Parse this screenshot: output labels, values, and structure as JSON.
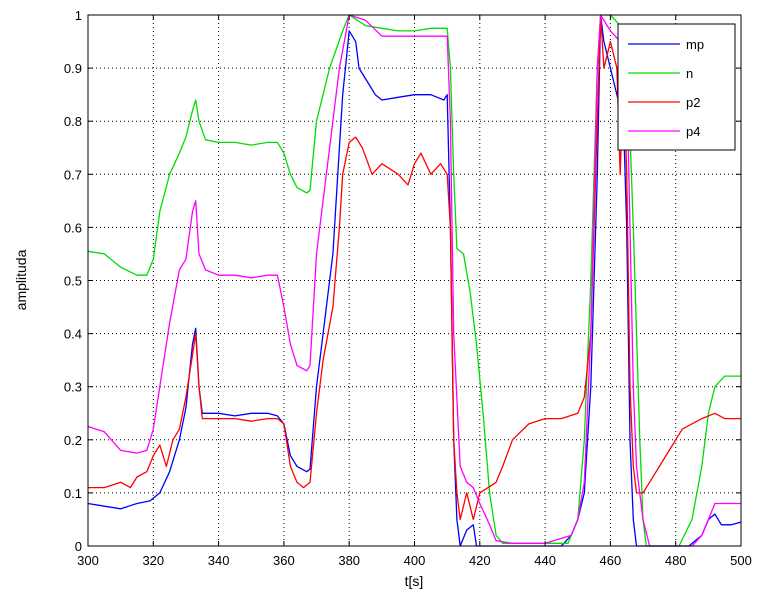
{
  "chart_data": {
    "type": "line",
    "title": "",
    "xlabel": "t[s]",
    "ylabel": "amplituda",
    "xlim": [
      300,
      500
    ],
    "ylim": [
      0,
      1
    ],
    "x_ticks": [
      300,
      320,
      340,
      360,
      380,
      400,
      420,
      440,
      460,
      480,
      500
    ],
    "y_ticks": [
      0,
      0.1,
      0.2,
      0.3,
      0.4,
      0.5,
      0.6,
      0.7,
      0.8,
      0.9,
      1
    ],
    "grid": true,
    "legend_position": "top-right",
    "series": [
      {
        "name": "mp",
        "color": "#0000ff",
        "points": [
          [
            300,
            0.08
          ],
          [
            305,
            0.075
          ],
          [
            310,
            0.07
          ],
          [
            315,
            0.08
          ],
          [
            319,
            0.085
          ],
          [
            322,
            0.1
          ],
          [
            325,
            0.14
          ],
          [
            328,
            0.2
          ],
          [
            330,
            0.26
          ],
          [
            332,
            0.38
          ],
          [
            333,
            0.41
          ],
          [
            334,
            0.3
          ],
          [
            335,
            0.25
          ],
          [
            340,
            0.25
          ],
          [
            345,
            0.245
          ],
          [
            350,
            0.25
          ],
          [
            355,
            0.25
          ],
          [
            358,
            0.245
          ],
          [
            360,
            0.23
          ],
          [
            362,
            0.17
          ],
          [
            364,
            0.15
          ],
          [
            367,
            0.14
          ],
          [
            368,
            0.145
          ],
          [
            370,
            0.3
          ],
          [
            372,
            0.4
          ],
          [
            375,
            0.55
          ],
          [
            377,
            0.75
          ],
          [
            378,
            0.85
          ],
          [
            380,
            0.97
          ],
          [
            382,
            0.95
          ],
          [
            383,
            0.9
          ],
          [
            386,
            0.87
          ],
          [
            388,
            0.85
          ],
          [
            390,
            0.84
          ],
          [
            395,
            0.845
          ],
          [
            400,
            0.85
          ],
          [
            405,
            0.85
          ],
          [
            409,
            0.84
          ],
          [
            410,
            0.85
          ],
          [
            411,
            0.6
          ],
          [
            412,
            0.2
          ],
          [
            413,
            0.05
          ],
          [
            414,
            0.0
          ],
          [
            416,
            0.03
          ],
          [
            418,
            0.04
          ],
          [
            419,
            0.0
          ],
          [
            422,
            0.0
          ],
          [
            425,
            0.0
          ],
          [
            430,
            0.0
          ],
          [
            440,
            0.0
          ],
          [
            445,
            0.0
          ],
          [
            448,
            0.02
          ],
          [
            450,
            0.05
          ],
          [
            452,
            0.1
          ],
          [
            454,
            0.3
          ],
          [
            456,
            0.7
          ],
          [
            457,
            1.0
          ],
          [
            458,
            0.95
          ],
          [
            460,
            0.9
          ],
          [
            462,
            0.85
          ],
          [
            464,
            0.8
          ],
          [
            465,
            0.6
          ],
          [
            466,
            0.2
          ],
          [
            467,
            0.05
          ],
          [
            468,
            0.0
          ],
          [
            472,
            0.0
          ],
          [
            476,
            0.0
          ],
          [
            480,
            0.0
          ],
          [
            484,
            0.0
          ],
          [
            488,
            0.02
          ],
          [
            490,
            0.05
          ],
          [
            492,
            0.06
          ],
          [
            494,
            0.04
          ],
          [
            497,
            0.04
          ],
          [
            500,
            0.045
          ]
        ]
      },
      {
        "name": "n",
        "color": "#00dd00",
        "points": [
          [
            300,
            0.555
          ],
          [
            305,
            0.55
          ],
          [
            310,
            0.525
          ],
          [
            315,
            0.51
          ],
          [
            318,
            0.51
          ],
          [
            320,
            0.54
          ],
          [
            322,
            0.63
          ],
          [
            325,
            0.7
          ],
          [
            328,
            0.74
          ],
          [
            330,
            0.77
          ],
          [
            332,
            0.82
          ],
          [
            333,
            0.84
          ],
          [
            334,
            0.8
          ],
          [
            336,
            0.765
          ],
          [
            340,
            0.76
          ],
          [
            345,
            0.76
          ],
          [
            350,
            0.755
          ],
          [
            355,
            0.76
          ],
          [
            358,
            0.76
          ],
          [
            360,
            0.74
          ],
          [
            362,
            0.7
          ],
          [
            364,
            0.675
          ],
          [
            367,
            0.665
          ],
          [
            368,
            0.67
          ],
          [
            370,
            0.8
          ],
          [
            374,
            0.9
          ],
          [
            378,
            0.97
          ],
          [
            380,
            1.0
          ],
          [
            385,
            0.98
          ],
          [
            390,
            0.975
          ],
          [
            395,
            0.97
          ],
          [
            400,
            0.97
          ],
          [
            405,
            0.975
          ],
          [
            410,
            0.975
          ],
          [
            411,
            0.9
          ],
          [
            412,
            0.7
          ],
          [
            413,
            0.56
          ],
          [
            415,
            0.55
          ],
          [
            417,
            0.48
          ],
          [
            419,
            0.38
          ],
          [
            421,
            0.25
          ],
          [
            423,
            0.1
          ],
          [
            425,
            0.02
          ],
          [
            427,
            0.005
          ],
          [
            430,
            0.005
          ],
          [
            440,
            0.005
          ],
          [
            447,
            0.005
          ],
          [
            450,
            0.05
          ],
          [
            452,
            0.2
          ],
          [
            454,
            0.5
          ],
          [
            456,
            0.9
          ],
          [
            457,
            1.0
          ],
          [
            460,
            1.0
          ],
          [
            463,
            0.98
          ],
          [
            465,
            0.95
          ],
          [
            467,
            0.6
          ],
          [
            469,
            0.2
          ],
          [
            470,
            0.05
          ],
          [
            471,
            0.0
          ],
          [
            476,
            0.0
          ],
          [
            481,
            0.0
          ],
          [
            485,
            0.05
          ],
          [
            488,
            0.15
          ],
          [
            490,
            0.25
          ],
          [
            492,
            0.3
          ],
          [
            495,
            0.32
          ],
          [
            500,
            0.32
          ]
        ]
      },
      {
        "name": "p2",
        "color": "#ff0000",
        "points": [
          [
            300,
            0.11
          ],
          [
            305,
            0.11
          ],
          [
            310,
            0.12
          ],
          [
            313,
            0.11
          ],
          [
            315,
            0.13
          ],
          [
            318,
            0.14
          ],
          [
            320,
            0.17
          ],
          [
            322,
            0.19
          ],
          [
            324,
            0.15
          ],
          [
            326,
            0.2
          ],
          [
            328,
            0.22
          ],
          [
            330,
            0.28
          ],
          [
            332,
            0.36
          ],
          [
            333,
            0.4
          ],
          [
            334,
            0.3
          ],
          [
            335,
            0.24
          ],
          [
            340,
            0.24
          ],
          [
            345,
            0.24
          ],
          [
            350,
            0.235
          ],
          [
            355,
            0.24
          ],
          [
            358,
            0.24
          ],
          [
            360,
            0.23
          ],
          [
            362,
            0.15
          ],
          [
            364,
            0.12
          ],
          [
            366,
            0.11
          ],
          [
            368,
            0.12
          ],
          [
            370,
            0.25
          ],
          [
            372,
            0.35
          ],
          [
            375,
            0.45
          ],
          [
            377,
            0.6
          ],
          [
            378,
            0.7
          ],
          [
            380,
            0.76
          ],
          [
            382,
            0.77
          ],
          [
            384,
            0.75
          ],
          [
            387,
            0.7
          ],
          [
            390,
            0.72
          ],
          [
            395,
            0.7
          ],
          [
            398,
            0.68
          ],
          [
            400,
            0.72
          ],
          [
            402,
            0.74
          ],
          [
            405,
            0.7
          ],
          [
            408,
            0.72
          ],
          [
            410,
            0.7
          ],
          [
            411,
            0.6
          ],
          [
            412,
            0.2
          ],
          [
            413,
            0.1
          ],
          [
            414,
            0.05
          ],
          [
            416,
            0.1
          ],
          [
            418,
            0.05
          ],
          [
            420,
            0.1
          ],
          [
            425,
            0.12
          ],
          [
            427,
            0.15
          ],
          [
            430,
            0.2
          ],
          [
            435,
            0.23
          ],
          [
            440,
            0.24
          ],
          [
            445,
            0.24
          ],
          [
            450,
            0.25
          ],
          [
            452,
            0.28
          ],
          [
            454,
            0.4
          ],
          [
            456,
            0.8
          ],
          [
            457,
            1.0
          ],
          [
            458,
            0.9
          ],
          [
            460,
            0.95
          ],
          [
            462,
            0.9
          ],
          [
            463,
            0.7
          ],
          [
            464,
            0.9
          ],
          [
            465,
            0.7
          ],
          [
            466,
            0.3
          ],
          [
            467,
            0.15
          ],
          [
            468,
            0.1
          ],
          [
            470,
            0.1
          ],
          [
            472,
            0.12
          ],
          [
            475,
            0.15
          ],
          [
            478,
            0.18
          ],
          [
            482,
            0.22
          ],
          [
            488,
            0.24
          ],
          [
            492,
            0.25
          ],
          [
            495,
            0.24
          ],
          [
            500,
            0.24
          ]
        ]
      },
      {
        "name": "p4",
        "color": "#ff00ff",
        "points": [
          [
            300,
            0.225
          ],
          [
            305,
            0.215
          ],
          [
            310,
            0.18
          ],
          [
            315,
            0.175
          ],
          [
            318,
            0.18
          ],
          [
            320,
            0.22
          ],
          [
            322,
            0.3
          ],
          [
            325,
            0.42
          ],
          [
            328,
            0.52
          ],
          [
            330,
            0.54
          ],
          [
            332,
            0.63
          ],
          [
            333,
            0.65
          ],
          [
            334,
            0.55
          ],
          [
            336,
            0.52
          ],
          [
            340,
            0.51
          ],
          [
            345,
            0.51
          ],
          [
            350,
            0.505
          ],
          [
            355,
            0.51
          ],
          [
            358,
            0.51
          ],
          [
            360,
            0.45
          ],
          [
            362,
            0.38
          ],
          [
            364,
            0.34
          ],
          [
            367,
            0.33
          ],
          [
            368,
            0.34
          ],
          [
            370,
            0.55
          ],
          [
            374,
            0.75
          ],
          [
            377,
            0.9
          ],
          [
            380,
            1.0
          ],
          [
            385,
            0.99
          ],
          [
            390,
            0.96
          ],
          [
            395,
            0.96
          ],
          [
            400,
            0.96
          ],
          [
            405,
            0.96
          ],
          [
            410,
            0.96
          ],
          [
            411,
            0.8
          ],
          [
            412,
            0.4
          ],
          [
            414,
            0.15
          ],
          [
            416,
            0.12
          ],
          [
            418,
            0.11
          ],
          [
            420,
            0.08
          ],
          [
            423,
            0.04
          ],
          [
            425,
            0.01
          ],
          [
            430,
            0.005
          ],
          [
            440,
            0.005
          ],
          [
            448,
            0.02
          ],
          [
            450,
            0.05
          ],
          [
            452,
            0.12
          ],
          [
            454,
            0.4
          ],
          [
            456,
            0.9
          ],
          [
            457,
            1.0
          ],
          [
            460,
            0.97
          ],
          [
            463,
            0.95
          ],
          [
            465,
            0.9
          ],
          [
            466,
            0.6
          ],
          [
            467,
            0.3
          ],
          [
            468,
            0.15
          ],
          [
            470,
            0.05
          ],
          [
            472,
            0.0
          ],
          [
            476,
            0.0
          ],
          [
            480,
            0.0
          ],
          [
            485,
            0.0
          ],
          [
            488,
            0.02
          ],
          [
            490,
            0.05
          ],
          [
            492,
            0.08
          ],
          [
            495,
            0.08
          ],
          [
            500,
            0.08
          ]
        ]
      }
    ]
  }
}
